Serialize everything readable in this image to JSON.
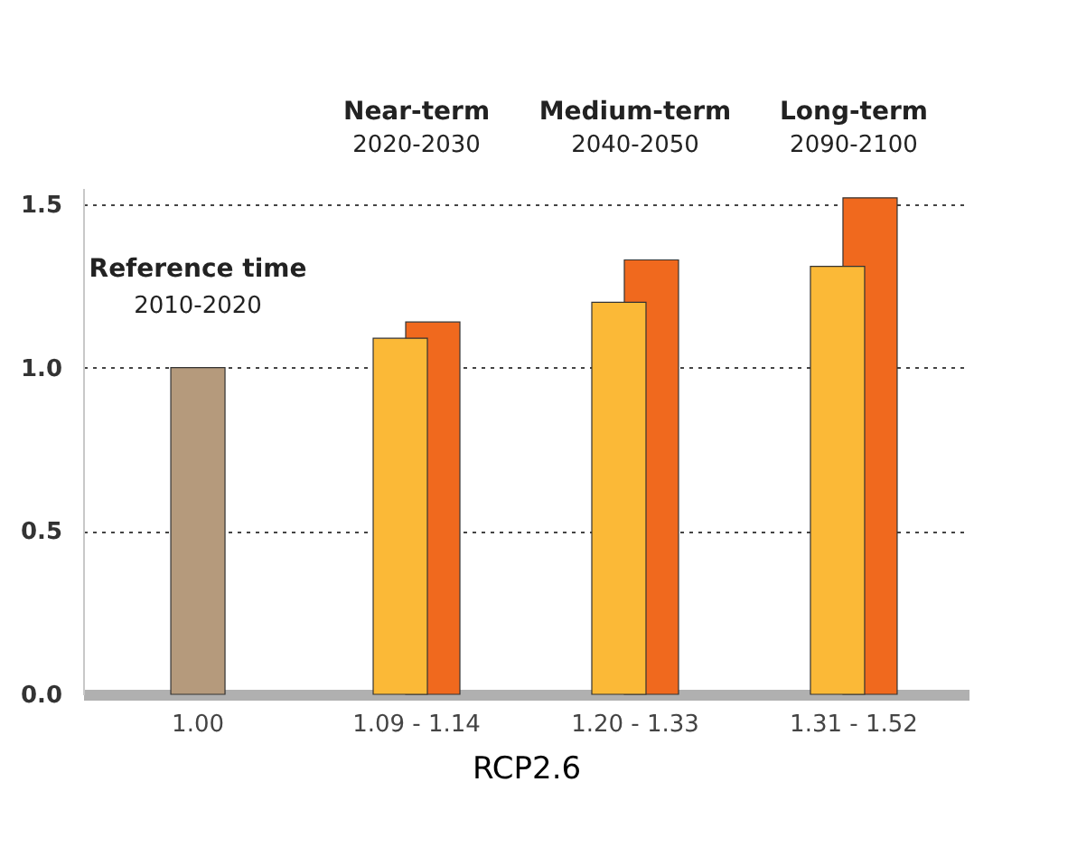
{
  "chart_data": {
    "type": "bar",
    "xlabel": "RCP2.6",
    "categories": [
      "1.00",
      "1.09 - 1.14",
      "1.20 - 1.33",
      "1.31 - 1.52"
    ],
    "series": [
      {
        "color": "#b59a7c",
        "values": [
          1.0,
          null,
          null,
          null
        ]
      },
      {
        "color": "#fbb937",
        "values": [
          null,
          1.09,
          1.2,
          1.31
        ]
      },
      {
        "color": "#f0691e",
        "values": [
          null,
          1.14,
          1.33,
          1.52
        ]
      }
    ],
    "ylim": [
      0,
      1.55
    ],
    "yticks": [
      {
        "value": 0,
        "label": "0.0"
      },
      {
        "value": 0.5,
        "label": "0.5"
      },
      {
        "value": 1,
        "label": "1.0"
      },
      {
        "value": 1.5,
        "label": "1.5"
      }
    ],
    "grid": "y",
    "legend": false,
    "annotations": [
      "Reference time",
      "2010-2020",
      "Near-term",
      "2020-2030",
      "Medium-term",
      "2040-2050",
      "Long-term",
      "2090-2100"
    ]
  }
}
